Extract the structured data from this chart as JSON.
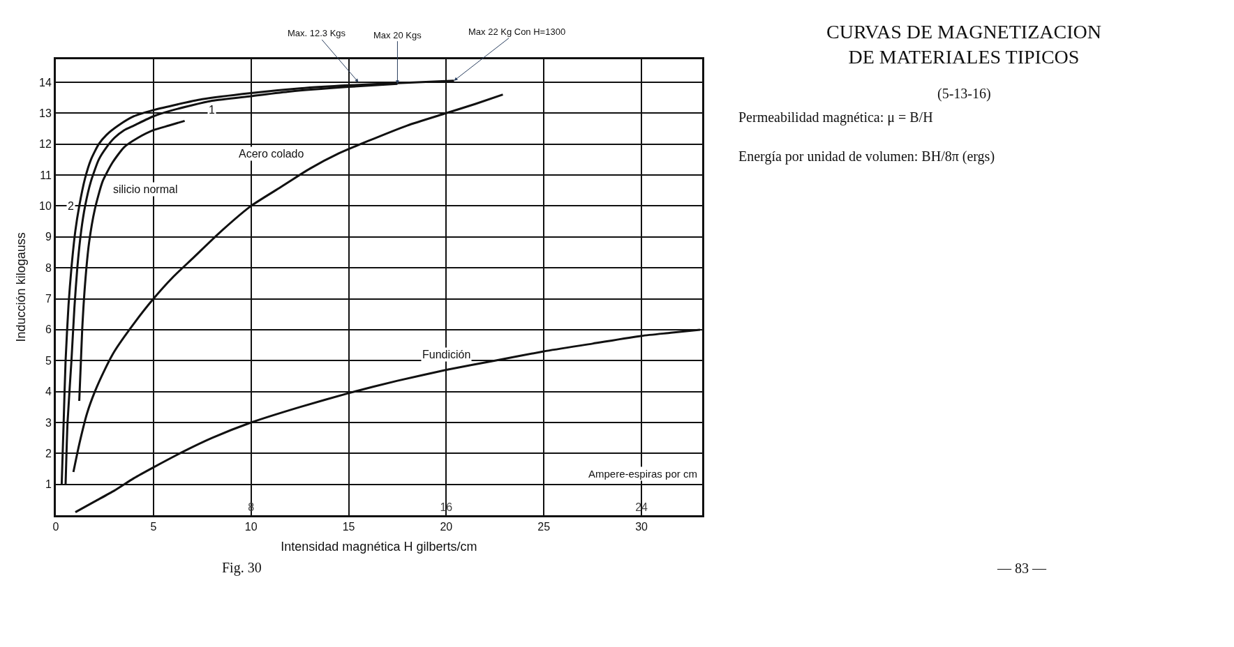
{
  "chart_data": {
    "type": "line",
    "title": "CURVAS DE MAGNETIZACION DE MATERIALES TIPICOS",
    "subtitle": "(5-13-16)",
    "xlabel": "Intensidad magnética H gilberts/cm",
    "ylabel": "Inducción kilogauss",
    "x2label": "Ampere-espiras por cm",
    "xlim": [
      0,
      33.1
    ],
    "xticks": [
      0,
      5,
      10,
      15,
      20,
      25,
      30
    ],
    "x2lim": [
      0,
      26.48
    ],
    "x2ticks": [
      8,
      16,
      24
    ],
    "ylim": [
      0,
      14.75
    ],
    "yticks": [
      1,
      2,
      3,
      4,
      5,
      6,
      7,
      8,
      9,
      10,
      11,
      12,
      13,
      14
    ],
    "grid": true,
    "legend": false,
    "line_style": "solid",
    "marker": "none",
    "series": [
      {
        "name": "2",
        "color": "#111111",
        "x": [
          0.3,
          0.4,
          0.5,
          0.65,
          0.8,
          1.0,
          1.2,
          1.5,
          1.8,
          2.2,
          2.6,
          3.2,
          4.0,
          5.0,
          6.0,
          7.5,
          10,
          12.5,
          15,
          17.5,
          20.4
        ],
        "values": [
          1.0,
          3.0,
          5.0,
          6.8,
          8.0,
          9.2,
          10.0,
          10.9,
          11.5,
          12.0,
          12.3,
          12.6,
          12.9,
          13.1,
          13.25,
          13.45,
          13.65,
          13.8,
          13.9,
          13.97,
          14.05
        ]
      },
      {
        "name": "1",
        "color": "#111111",
        "x": [
          0.5,
          0.6,
          0.8,
          0.95,
          1.1,
          1.3,
          1.5,
          1.8,
          2.2,
          2.6,
          3.0,
          3.5,
          4.0,
          5.0,
          6.0,
          8.0,
          10,
          12,
          15,
          17.5
        ],
        "values": [
          1.0,
          3.0,
          5.0,
          6.7,
          8.0,
          9.2,
          10.0,
          10.8,
          11.5,
          11.9,
          12.2,
          12.45,
          12.6,
          12.9,
          13.1,
          13.4,
          13.55,
          13.7,
          13.85,
          13.95
        ]
      },
      {
        "name": "silicio normal",
        "color": "#111111",
        "x": [
          1.2,
          1.35,
          1.5,
          1.7,
          2.0,
          2.4,
          2.9,
          3.5,
          4.2,
          5.0,
          5.8,
          6.6
        ],
        "values": [
          3.7,
          6.0,
          7.5,
          8.8,
          9.9,
          10.8,
          11.4,
          11.9,
          12.2,
          12.45,
          12.6,
          12.75
        ]
      },
      {
        "name": "Acero colado",
        "color": "#111111",
        "x": [
          0.9,
          1.2,
          1.6,
          2.0,
          2.5,
          3.0,
          4.0,
          5.0,
          6.0,
          7.0,
          8.5,
          10,
          11.5,
          13,
          14.5,
          16,
          18,
          20,
          21.5,
          22.9
        ],
        "values": [
          1.4,
          2.3,
          3.3,
          4.0,
          4.7,
          5.3,
          6.2,
          7.0,
          7.7,
          8.3,
          9.2,
          10.0,
          10.6,
          11.2,
          11.7,
          12.1,
          12.6,
          13.0,
          13.3,
          13.6
        ]
      },
      {
        "name": "Fundición",
        "color": "#111111",
        "x": [
          1.0,
          2.0,
          3.0,
          4.0,
          5.0,
          6.5,
          8.0,
          10,
          12.5,
          15,
          17.5,
          20,
          22.5,
          25,
          27.5,
          30,
          31.5,
          33.0
        ],
        "values": [
          0.1,
          0.45,
          0.8,
          1.2,
          1.55,
          2.05,
          2.5,
          3.0,
          3.5,
          3.95,
          4.35,
          4.7,
          5.0,
          5.3,
          5.55,
          5.8,
          5.9,
          6.0
        ]
      }
    ],
    "annotations": [
      {
        "text": "Max. 12.3 Kgs",
        "x": 15.5,
        "y": 14.0
      },
      {
        "text": "Max 20 Kgs",
        "x": 17.5,
        "y": 13.95
      },
      {
        "text": "Max 22 Kg Con H=1300",
        "x": 20.4,
        "y": 14.05
      },
      "Permeabilidad magnética: μ = B/H",
      "Energía por unidad de volumen: BH/8π (ergs)",
      "Fig. 30",
      "— 83 —"
    ]
  }
}
